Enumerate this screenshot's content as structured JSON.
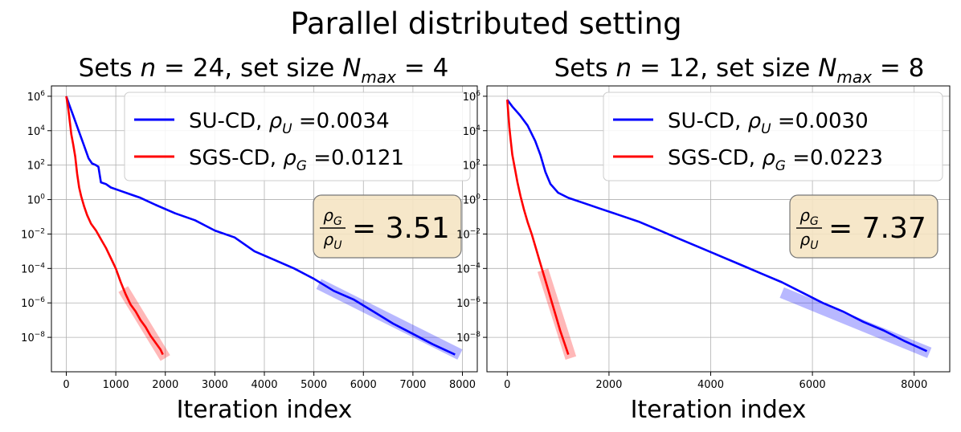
{
  "figure": {
    "title": "Parallel distributed setting"
  },
  "chart_data": [
    {
      "type": "line",
      "title": "Sets n = 24, set size N_max =  4",
      "title_parts": {
        "prefix": "Sets ",
        "n_sym": "n",
        "n_eq": " = 24, set size ",
        "N_sym": "N",
        "N_sub": "max",
        "N_eq": " =  4"
      },
      "xlabel": "Iteration index",
      "ylabel": "",
      "y_scale": "log",
      "xlim": [
        -300,
        8300
      ],
      "ylim_log10": [
        -10,
        6.6
      ],
      "xticks": [
        0,
        1000,
        2000,
        3000,
        4000,
        5000,
        6000,
        7000,
        8000
      ],
      "xtick_labels": [
        "0",
        "1000",
        "2000",
        "3000",
        "4000",
        "5000",
        "6000",
        "7000",
        "8000"
      ],
      "yticks_log10": [
        6,
        4,
        2,
        0,
        -2,
        -4,
        -6,
        -8
      ],
      "ytick_labels": [
        {
          "base": "10",
          "exp": "6"
        },
        {
          "base": "10",
          "exp": "4"
        },
        {
          "base": "10",
          "exp": "2"
        },
        {
          "base": "10",
          "exp": "0"
        },
        {
          "base": "10",
          "exp": "−2"
        },
        {
          "base": "10",
          "exp": "−4"
        },
        {
          "base": "10",
          "exp": "−6"
        },
        {
          "base": "10",
          "exp": "−8"
        }
      ],
      "grid": true,
      "legend_placement": "top-right",
      "series": [
        {
          "name": "SU-CD, ρ_U =0.0034",
          "legend_parts": {
            "text": "SU-CD, ",
            "sym": "ρ",
            "sub": "U",
            "val": " =0.0034"
          },
          "color": "#0000ff",
          "x": [
            0,
            60,
            150,
            250,
            350,
            450,
            520,
            600,
            650,
            700,
            800,
            900,
            1100,
            1300,
            1500,
            1800,
            2200,
            2600,
            3000,
            3400,
            3800,
            4200,
            4600,
            5000,
            5400,
            5800,
            6200,
            6600,
            7000,
            7400,
            7850
          ],
          "log10_y": [
            6,
            5.5,
            4.8,
            4.0,
            3.2,
            2.4,
            2.1,
            2.0,
            1.9,
            1.0,
            0.9,
            0.7,
            0.5,
            0.3,
            0.1,
            -0.3,
            -0.8,
            -1.2,
            -1.8,
            -2.2,
            -3.0,
            -3.5,
            -4.0,
            -4.6,
            -5.3,
            -5.8,
            -6.5,
            -7.2,
            -7.8,
            -8.4,
            -9.0
          ]
        },
        {
          "name": "SGS-CD, ρ_G =0.0121",
          "legend_parts": {
            "text": "SGS-CD, ",
            "sym": "ρ",
            "sub": "G",
            "val": " =0.0121"
          },
          "color": "#ff0000",
          "x": [
            0,
            30,
            60,
            100,
            140,
            180,
            220,
            260,
            300,
            360,
            420,
            500,
            600,
            700,
            800,
            900,
            1000,
            1100,
            1200,
            1300,
            1400,
            1500,
            1600,
            1700,
            1800,
            1900,
            1950
          ],
          "log10_y": [
            6,
            5.5,
            4.8,
            3.8,
            3.2,
            2.5,
            1.5,
            0.7,
            0.2,
            -0.4,
            -0.9,
            -1.4,
            -1.8,
            -2.3,
            -2.8,
            -3.4,
            -4.0,
            -4.8,
            -5.5,
            -6.1,
            -6.5,
            -7.0,
            -7.4,
            -7.9,
            -8.3,
            -8.7,
            -9.0
          ]
        }
      ],
      "fit_bands": [
        {
          "color": "#0000ff",
          "x": [
            5100,
            7950
          ],
          "log10_y": [
            -4.9,
            -9.0
          ]
        },
        {
          "color": "#ff0000",
          "x": [
            1150,
            2000
          ],
          "log10_y": [
            -5.2,
            -9.2
          ]
        }
      ],
      "ratio_box": {
        "num_sym": "ρ",
        "num_sub": "G",
        "den_sym": "ρ",
        "den_sub": "U",
        "value": "= 3.51"
      }
    },
    {
      "type": "line",
      "title": "Sets n = 12, set size N_max =  8",
      "title_parts": {
        "prefix": "Sets ",
        "n_sym": "n",
        "n_eq": " = 12, set size ",
        "N_sym": "N",
        "N_sub": "max",
        "N_eq": " =  8"
      },
      "xlabel": "Iteration index",
      "ylabel": "",
      "y_scale": "log",
      "xlim": [
        -400,
        8700
      ],
      "ylim_log10": [
        -10,
        6.6
      ],
      "xticks": [
        0,
        2000,
        4000,
        6000,
        8000
      ],
      "xtick_labels": [
        "0",
        "2000",
        "4000",
        "6000",
        "8000"
      ],
      "yticks_log10": [
        6,
        4,
        2,
        0,
        -2,
        -4,
        -6,
        -8
      ],
      "ytick_labels": [
        {
          "base": "10",
          "exp": "6"
        },
        {
          "base": "10",
          "exp": "4"
        },
        {
          "base": "10",
          "exp": "2"
        },
        {
          "base": "10",
          "exp": "0"
        },
        {
          "base": "10",
          "exp": "−2"
        },
        {
          "base": "10",
          "exp": "−4"
        },
        {
          "base": "10",
          "exp": "−6"
        },
        {
          "base": "10",
          "exp": "−8"
        }
      ],
      "grid": true,
      "legend_placement": "top-right",
      "series": [
        {
          "name": "SU-CD, ρ_U =0.0030",
          "legend_parts": {
            "text": "SU-CD, ",
            "sym": "ρ",
            "sub": "U",
            "val": " =0.0030"
          },
          "color": "#0000ff",
          "x": [
            0,
            100,
            250,
            400,
            550,
            650,
            750,
            850,
            1000,
            1200,
            1500,
            1800,
            2200,
            2600,
            3000,
            3400,
            3800,
            4200,
            4600,
            5000,
            5400,
            5800,
            6200,
            6600,
            7000,
            7400,
            7800,
            8250
          ],
          "log10_y": [
            5.8,
            5.4,
            4.9,
            4.3,
            3.4,
            2.6,
            1.6,
            0.9,
            0.4,
            0.1,
            -0.2,
            -0.5,
            -0.9,
            -1.3,
            -1.8,
            -2.3,
            -2.8,
            -3.3,
            -3.8,
            -4.3,
            -4.8,
            -5.4,
            -6.0,
            -6.5,
            -7.1,
            -7.6,
            -8.2,
            -8.8
          ]
        },
        {
          "name": "SGS-CD, ρ_G =0.0223",
          "legend_parts": {
            "text": "SGS-CD, ",
            "sym": "ρ",
            "sub": "G",
            "val": " =0.0223"
          },
          "color": "#ff0000",
          "x": [
            0,
            20,
            40,
            70,
            100,
            150,
            200,
            260,
            330,
            400,
            480,
            560,
            640,
            720,
            800,
            880,
            960,
            1040,
            1120,
            1200
          ],
          "log10_y": [
            5.8,
            5.0,
            4.2,
            3.4,
            2.6,
            1.8,
            1.0,
            0.2,
            -0.6,
            -1.3,
            -2.0,
            -2.8,
            -3.6,
            -4.4,
            -5.2,
            -6.0,
            -6.8,
            -7.6,
            -8.3,
            -9.0
          ]
        }
      ],
      "fit_bands": [
        {
          "color": "#0000ff",
          "x": [
            5400,
            8300
          ],
          "log10_y": [
            -5.4,
            -8.9
          ]
        },
        {
          "color": "#ff0000",
          "x": [
            700,
            1250
          ],
          "log10_y": [
            -4.1,
            -9.2
          ]
        }
      ],
      "ratio_box": {
        "num_sym": "ρ",
        "num_sub": "G",
        "den_sym": "ρ",
        "den_sub": "U",
        "value": "= 7.37"
      }
    }
  ]
}
